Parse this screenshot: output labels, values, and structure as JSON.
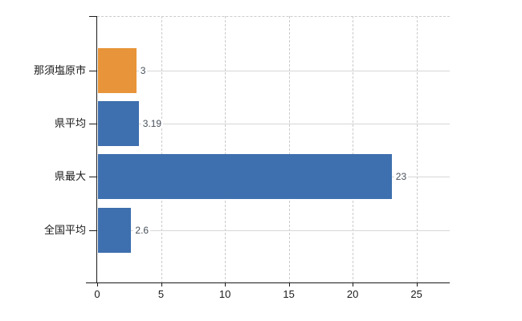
{
  "chart_data": {
    "type": "bar",
    "orientation": "horizontal",
    "title": "",
    "xlabel": "",
    "ylabel": "",
    "categories": [
      "那須塩原市",
      "県平均",
      "県最大",
      "全国平均"
    ],
    "values": [
      3,
      3.19,
      23,
      2.6
    ],
    "value_labels": [
      "3",
      "3.19",
      "23",
      "2.6"
    ],
    "x_ticks": [
      "0",
      "5",
      "10",
      "15",
      "20",
      "25"
    ],
    "x_tick_values": [
      0,
      5,
      10,
      15,
      20,
      25
    ],
    "xlim": [
      0,
      27.6
    ],
    "grid": true,
    "legend": false,
    "bar_colors": [
      "#e8943a",
      "#3e6fae",
      "#3e6fae",
      "#3e6fae"
    ],
    "colors": {
      "highlight_bar": "#e8943a",
      "default_bar": "#3e6fae",
      "gridline": "#d6d6d6",
      "axis": "#1a1a1a",
      "tick_label": "#1a1a1a",
      "value_label": "#47505a",
      "background": "#ffffff"
    }
  }
}
